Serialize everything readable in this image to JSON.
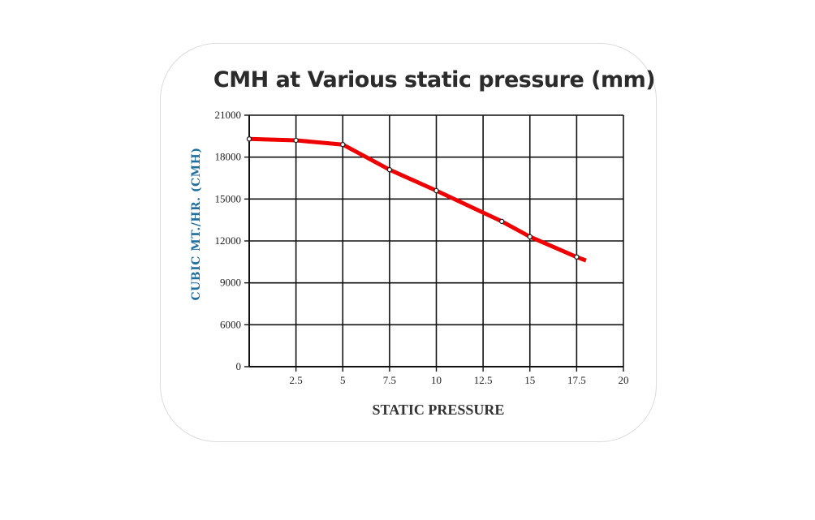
{
  "chart_data": {
    "type": "line",
    "title": "CMH at Various static pressure (mm)",
    "xlabel": "STATIC PRESSURE",
    "ylabel": "CUBIC MT./HR. (CMH)",
    "xlim": [
      0,
      20
    ],
    "ylim": [
      0,
      21000
    ],
    "xticks": [
      2.5,
      5,
      7.5,
      10,
      12.5,
      15,
      17.5,
      20
    ],
    "xtick_labels": [
      "2.5",
      "5",
      "7.5",
      "10",
      "12.5",
      "15",
      "17.5",
      "20"
    ],
    "yticks": [
      0,
      6000,
      9000,
      12000,
      15000,
      18000,
      21000
    ],
    "ytick_labels": [
      "0",
      "6000",
      "9000",
      "12000",
      "15000",
      "18000",
      "21000"
    ],
    "grid": true,
    "series": [
      {
        "color": "#ee0000",
        "x": [
          0,
          2.5,
          5,
          7.5,
          10,
          13.5,
          15,
          17.5,
          18
        ],
        "y": [
          19300,
          19200,
          18900,
          17100,
          15600,
          13400,
          12300,
          10850,
          10600
        ],
        "markers": [
          true,
          true,
          true,
          true,
          true,
          true,
          true,
          true,
          false
        ]
      }
    ]
  }
}
